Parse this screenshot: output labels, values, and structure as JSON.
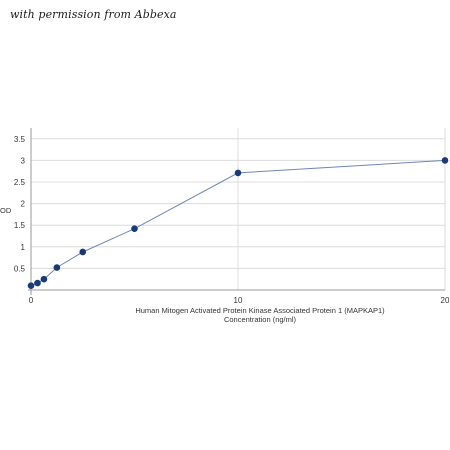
{
  "watermark": "with permission from Abbexa",
  "chart_data": {
    "type": "line",
    "title": "",
    "xlabel_lines": [
      "Human Mitogen Activated Protein Kinase Associated Protein 1 (MAPKAP1)",
      "Concentration (ng/ml)"
    ],
    "ylabel": "OD",
    "xlim": [
      0,
      20
    ],
    "ylim": [
      0,
      3.75
    ],
    "x_ticks": [
      0,
      10,
      20
    ],
    "y_ticks": [
      0.5,
      1,
      1.5,
      2,
      2.5,
      3,
      3.5
    ],
    "grid": true,
    "series": [
      {
        "x": [
          0,
          0.313,
          0.625,
          1.25,
          2.5,
          5,
          10,
          20
        ],
        "y": [
          0.1,
          0.16,
          0.25,
          0.52,
          0.88,
          1.42,
          2.71,
          3.0
        ]
      }
    ],
    "colors": {
      "line": "#6e86b8",
      "point": "#1a3a73",
      "grid": "#dcdcdc",
      "axis": "#9a9a9a"
    }
  }
}
